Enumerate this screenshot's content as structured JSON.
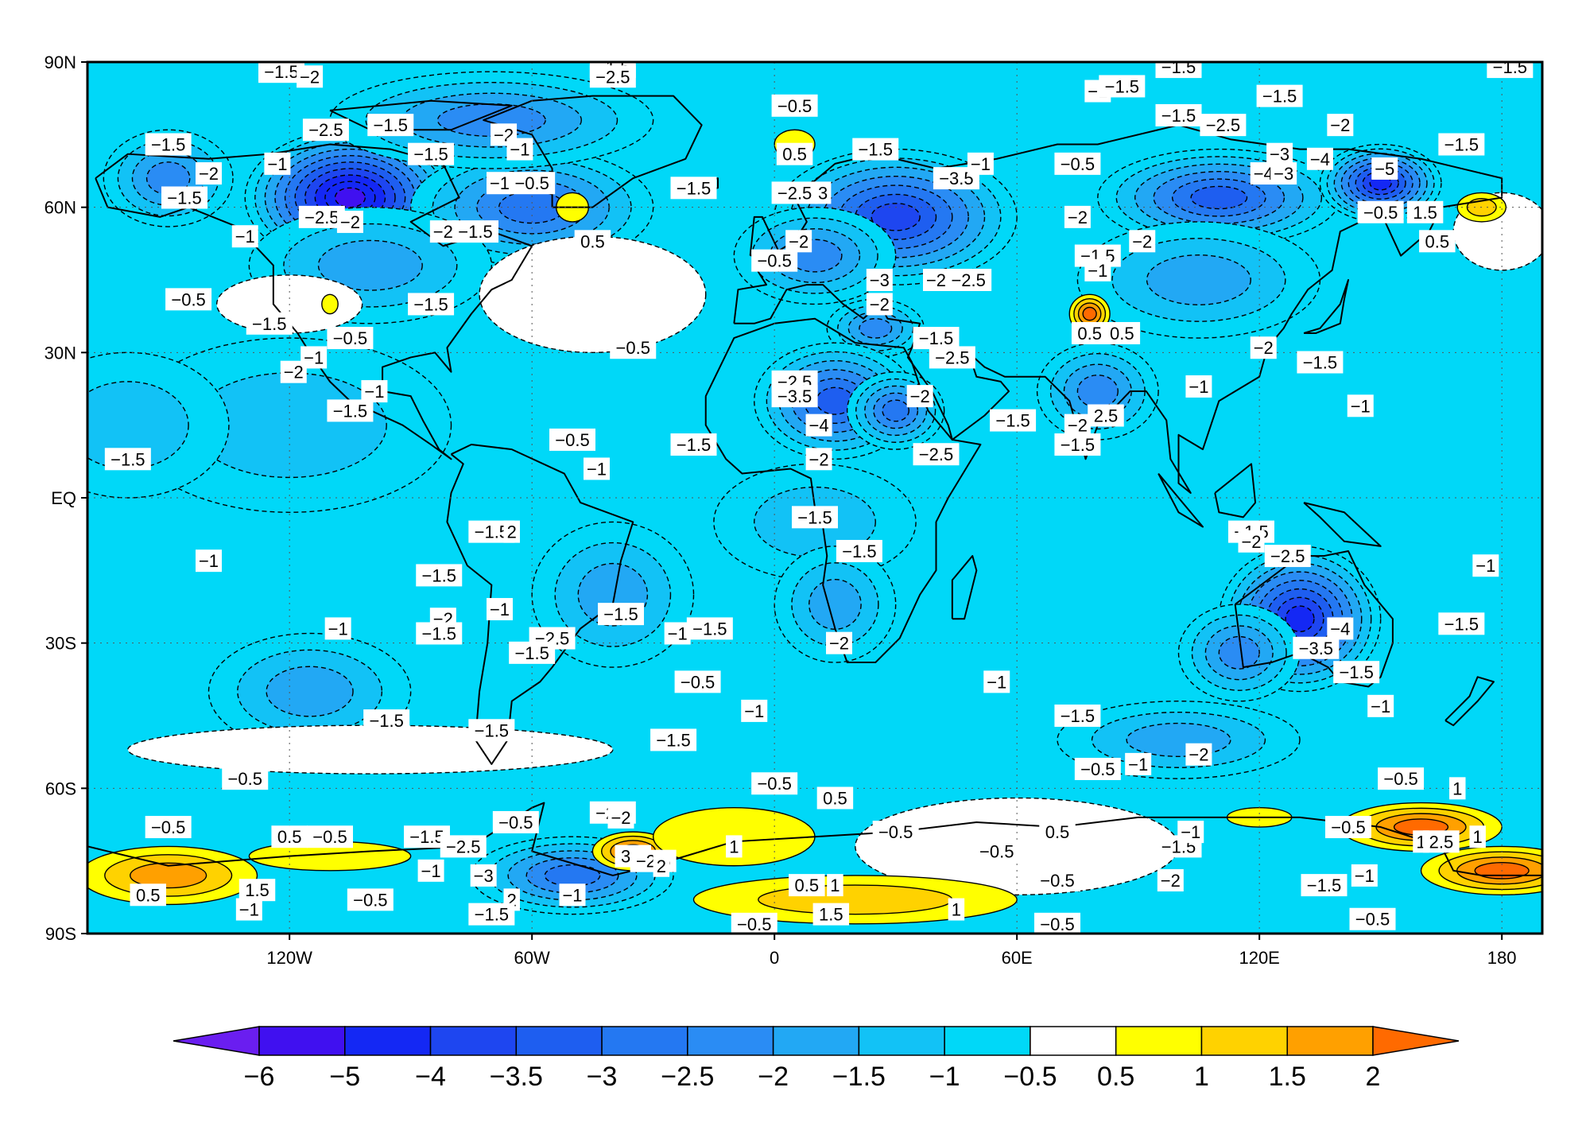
{
  "map": {
    "type": "filled-contour-map",
    "projection": "cylindrical-equidistant",
    "lon_range": [
      -170,
      190
    ],
    "lat_range": [
      -90,
      90
    ],
    "gridlines": "dotted",
    "x_ticks": [
      {
        "lon": -120,
        "label": "120W"
      },
      {
        "lon": -60,
        "label": "60W"
      },
      {
        "lon": 0,
        "label": "0"
      },
      {
        "lon": 60,
        "label": "60E"
      },
      {
        "lon": 120,
        "label": "120E"
      },
      {
        "lon": 180,
        "label": "180"
      }
    ],
    "y_ticks": [
      {
        "lat": 90,
        "label": "90N"
      },
      {
        "lat": 60,
        "label": "60N"
      },
      {
        "lat": 30,
        "label": "30N"
      },
      {
        "lat": 0,
        "label": "EQ"
      },
      {
        "lat": -30,
        "label": "30S"
      },
      {
        "lat": -60,
        "label": "60S"
      },
      {
        "lat": -90,
        "label": "90S"
      }
    ],
    "background_level_color": "#00d8f8",
    "anomalies": [
      {
        "lon": -105,
        "lat": 62,
        "rx": 26,
        "ry": 14,
        "value": -5.5
      },
      {
        "lon": -60,
        "lat": 60,
        "rx": 30,
        "ry": 12,
        "value": -3
      },
      {
        "lon": -150,
        "lat": 66,
        "rx": 16,
        "ry": 10,
        "value": -2.5
      },
      {
        "lon": -100,
        "lat": 48,
        "rx": 30,
        "ry": 12,
        "value": -2
      },
      {
        "lon": -120,
        "lat": 15,
        "rx": 40,
        "ry": 18,
        "value": -1.5
      },
      {
        "lon": -70,
        "lat": 78,
        "rx": 40,
        "ry": 10,
        "value": -2.5
      },
      {
        "lon": 30,
        "lat": 58,
        "rx": 30,
        "ry": 14,
        "value": -4
      },
      {
        "lon": 10,
        "lat": 50,
        "rx": 20,
        "ry": 10,
        "value": -2.5
      },
      {
        "lon": 25,
        "lat": 35,
        "rx": 12,
        "ry": 6,
        "value": -2.5
      },
      {
        "lon": 15,
        "lat": 20,
        "rx": 20,
        "ry": 12,
        "value": -3.5
      },
      {
        "lon": 30,
        "lat": 18,
        "rx": 12,
        "ry": 8,
        "value": -3
      },
      {
        "lon": 10,
        "lat": -5,
        "rx": 25,
        "ry": 12,
        "value": -1.5
      },
      {
        "lon": 15,
        "lat": -22,
        "rx": 15,
        "ry": 12,
        "value": -2
      },
      {
        "lon": 110,
        "lat": 62,
        "rx": 30,
        "ry": 10,
        "value": -3.5
      },
      {
        "lon": 150,
        "lat": 65,
        "rx": 15,
        "ry": 8,
        "value": -4.5
      },
      {
        "lon": 105,
        "lat": 45,
        "rx": 30,
        "ry": 12,
        "value": -2
      },
      {
        "lon": 80,
        "lat": 22,
        "rx": 15,
        "ry": 10,
        "value": -2.5
      },
      {
        "lon": 130,
        "lat": -25,
        "rx": 20,
        "ry": 15,
        "value": -4.5
      },
      {
        "lon": 115,
        "lat": -32,
        "rx": 15,
        "ry": 10,
        "value": -2.5
      },
      {
        "lon": -40,
        "lat": -20,
        "rx": 20,
        "ry": 15,
        "value": -2
      },
      {
        "lon": -115,
        "lat": -40,
        "rx": 25,
        "ry": 12,
        "value": -2
      },
      {
        "lon": 100,
        "lat": -50,
        "rx": 30,
        "ry": 8,
        "value": -2
      },
      {
        "lon": -50,
        "lat": -78,
        "rx": 25,
        "ry": 8,
        "value": -3
      },
      {
        "lon": -160,
        "lat": 15,
        "rx": 25,
        "ry": 15,
        "value": -1.5
      },
      {
        "lon": -45,
        "lat": 42,
        "rx": 28,
        "ry": 12,
        "value": -0.2
      },
      {
        "lon": -120,
        "lat": 40,
        "rx": 18,
        "ry": 6,
        "value": -0.2
      },
      {
        "lon": -100,
        "lat": -52,
        "rx": 60,
        "ry": 5,
        "value": -0.2
      },
      {
        "lon": 60,
        "lat": -72,
        "rx": 40,
        "ry": 10,
        "value": -0.2
      },
      {
        "lon": 180,
        "lat": 55,
        "rx": 12,
        "ry": 8,
        "value": -0.2
      },
      {
        "lon": 5,
        "lat": 73,
        "rx": 5,
        "ry": 3,
        "value": 0.8
      },
      {
        "lon": -50,
        "lat": 60,
        "rx": 4,
        "ry": 3,
        "value": 0.8
      },
      {
        "lon": 78,
        "lat": 38,
        "rx": 5,
        "ry": 4,
        "value": 2
      },
      {
        "lon": -110,
        "lat": 40,
        "rx": 2,
        "ry": 2,
        "value": 0.6
      },
      {
        "lon": -150,
        "lat": -78,
        "rx": 22,
        "ry": 6,
        "value": 1.5
      },
      {
        "lon": -110,
        "lat": -74,
        "rx": 20,
        "ry": 3,
        "value": 0.8
      },
      {
        "lon": -35,
        "lat": -73,
        "rx": 10,
        "ry": 4,
        "value": 2
      },
      {
        "lon": -10,
        "lat": -70,
        "rx": 20,
        "ry": 6,
        "value": 0.8
      },
      {
        "lon": 20,
        "lat": -83,
        "rx": 40,
        "ry": 5,
        "value": 1.2
      },
      {
        "lon": 160,
        "lat": -68,
        "rx": 20,
        "ry": 5,
        "value": 2
      },
      {
        "lon": 180,
        "lat": -77,
        "rx": 20,
        "ry": 5,
        "value": 2
      },
      {
        "lon": 175,
        "lat": 60,
        "rx": 6,
        "ry": 3,
        "value": 1.2
      },
      {
        "lon": 120,
        "lat": -66,
        "rx": 8,
        "ry": 2,
        "value": 0.8
      }
    ],
    "contour_labels": [
      {
        "lon": -150,
        "lat": 73,
        "text": "-1.5"
      },
      {
        "lon": -140,
        "lat": 67,
        "text": "-2"
      },
      {
        "lon": -146,
        "lat": 62,
        "text": "-1.5"
      },
      {
        "lon": -123,
        "lat": 69,
        "text": "-1"
      },
      {
        "lon": -111,
        "lat": 76,
        "text": "-2.5"
      },
      {
        "lon": -112,
        "lat": 58,
        "text": "-2.5"
      },
      {
        "lon": -105,
        "lat": 57,
        "text": "-2"
      },
      {
        "lon": -131,
        "lat": 54,
        "text": "-1"
      },
      {
        "lon": -85,
        "lat": 71,
        "text": "-1.5"
      },
      {
        "lon": -67,
        "lat": 75,
        "text": "-2"
      },
      {
        "lon": -63,
        "lat": 72,
        "text": "-1"
      },
      {
        "lon": -68,
        "lat": 65,
        "text": "-1"
      },
      {
        "lon": -60,
        "lat": 65,
        "text": "-0.5"
      },
      {
        "lon": -82,
        "lat": 55,
        "text": "-2"
      },
      {
        "lon": -74,
        "lat": 55,
        "text": "-1.5"
      },
      {
        "lon": -45,
        "lat": 53,
        "text": "0.5"
      },
      {
        "lon": -145,
        "lat": 41,
        "text": "-0.5"
      },
      {
        "lon": -125,
        "lat": 36,
        "text": "-1.5"
      },
      {
        "lon": -105,
        "lat": 33,
        "text": "-0.5"
      },
      {
        "lon": -114,
        "lat": 29,
        "text": "-1"
      },
      {
        "lon": -119,
        "lat": 26,
        "text": "-2"
      },
      {
        "lon": -85,
        "lat": 40,
        "text": "-1.5"
      },
      {
        "lon": -99,
        "lat": 22,
        "text": "-1"
      },
      {
        "lon": -105,
        "lat": 18,
        "text": "-1.5"
      },
      {
        "lon": -160,
        "lat": 8,
        "text": "-1.5"
      },
      {
        "lon": -35,
        "lat": 31,
        "text": "-0.5"
      },
      {
        "lon": -50,
        "lat": 12,
        "text": "-0.5"
      },
      {
        "lon": -44,
        "lat": 6,
        "text": "-1"
      },
      {
        "lon": -20,
        "lat": 11,
        "text": "-1.5"
      },
      {
        "lon": 5,
        "lat": 81,
        "text": "-0.5"
      },
      {
        "lon": 5,
        "lat": 71,
        "text": "0.5"
      },
      {
        "lon": 25,
        "lat": 72,
        "text": "-1.5"
      },
      {
        "lon": -20,
        "lat": 64,
        "text": "-1.5"
      },
      {
        "lon": 5,
        "lat": 63,
        "text": "-2.5"
      },
      {
        "lon": 12,
        "lat": 63,
        "text": "3"
      },
      {
        "lon": 45,
        "lat": 66,
        "text": "-3.5"
      },
      {
        "lon": 51,
        "lat": 69,
        "text": "-1"
      },
      {
        "lon": 6,
        "lat": 53,
        "text": "-2"
      },
      {
        "lon": 0,
        "lat": 49,
        "text": "-0.5"
      },
      {
        "lon": 26,
        "lat": 45,
        "text": "-3"
      },
      {
        "lon": 26,
        "lat": 40,
        "text": "-2"
      },
      {
        "lon": 40,
        "lat": 45,
        "text": "-2"
      },
      {
        "lon": 48,
        "lat": 45,
        "text": "-2.5"
      },
      {
        "lon": 40,
        "lat": 33,
        "text": "-1.5"
      },
      {
        "lon": 44,
        "lat": 29,
        "text": "-2.5"
      },
      {
        "lon": 5,
        "lat": 24,
        "text": "-2.5"
      },
      {
        "lon": 5,
        "lat": 21,
        "text": "-3.5"
      },
      {
        "lon": 36,
        "lat": 21,
        "text": "-2"
      },
      {
        "lon": 11,
        "lat": 15,
        "text": "-4"
      },
      {
        "lon": 59,
        "lat": 16,
        "text": "-1.5"
      },
      {
        "lon": 40,
        "lat": 9,
        "text": "-2.5"
      },
      {
        "lon": 11,
        "lat": 8,
        "text": "-2"
      },
      {
        "lon": 10,
        "lat": -4,
        "text": "-1.5"
      },
      {
        "lon": 21,
        "lat": -11,
        "text": "-1.5"
      },
      {
        "lon": 16,
        "lat": -30,
        "text": "-2"
      },
      {
        "lon": -38,
        "lat": -24,
        "text": "-1.5"
      },
      {
        "lon": -16,
        "lat": -27,
        "text": "-1.5"
      },
      {
        "lon": -24,
        "lat": -28,
        "text": "-1"
      },
      {
        "lon": -140,
        "lat": -13,
        "text": "-1"
      },
      {
        "lon": -108,
        "lat": -27,
        "text": "-1"
      },
      {
        "lon": -83,
        "lat": -16,
        "text": "-1.5"
      },
      {
        "lon": -82,
        "lat": -25,
        "text": "-2"
      },
      {
        "lon": -83,
        "lat": -28,
        "text": "-1.5"
      },
      {
        "lon": -68,
        "lat": -23,
        "text": "-1"
      },
      {
        "lon": -70,
        "lat": -7,
        "text": "-1.5"
      },
      {
        "lon": -65,
        "lat": -7,
        "text": "2"
      },
      {
        "lon": -55,
        "lat": -29,
        "text": "-2.5"
      },
      {
        "lon": -60,
        "lat": -32,
        "text": "-1.5"
      },
      {
        "lon": -96,
        "lat": -46,
        "text": "-1.5"
      },
      {
        "lon": -70,
        "lat": -48,
        "text": "-1.5"
      },
      {
        "lon": -19,
        "lat": -38,
        "text": "-0.5"
      },
      {
        "lon": -25,
        "lat": -50,
        "text": "-1.5"
      },
      {
        "lon": -5,
        "lat": -44,
        "text": "-1"
      },
      {
        "lon": 55,
        "lat": -38,
        "text": "-1"
      },
      {
        "lon": 75,
        "lat": -45,
        "text": "-1.5"
      },
      {
        "lon": 80,
        "lat": -56,
        "text": "-0.5"
      },
      {
        "lon": 90,
        "lat": -55,
        "text": "-1"
      },
      {
        "lon": 105,
        "lat": -53,
        "text": "-2"
      },
      {
        "lon": -95,
        "lat": 77,
        "text": "-1.5"
      },
      {
        "lon": 80,
        "lat": 84,
        "text": "-1"
      },
      {
        "lon": 86,
        "lat": 85,
        "text": "-1.5"
      },
      {
        "lon": 100,
        "lat": 79,
        "text": "-1.5"
      },
      {
        "lon": 111,
        "lat": 77,
        "text": "-2.5"
      },
      {
        "lon": 125,
        "lat": 83,
        "text": "-1.5"
      },
      {
        "lon": 140,
        "lat": 77,
        "text": "-2"
      },
      {
        "lon": 170,
        "lat": 73,
        "text": "-1.5"
      },
      {
        "lon": 75,
        "lat": 69,
        "text": "-0.5"
      },
      {
        "lon": 125,
        "lat": 71,
        "text": "-3"
      },
      {
        "lon": 135,
        "lat": 70,
        "text": "-4"
      },
      {
        "lon": 121,
        "lat": 67,
        "text": "-4"
      },
      {
        "lon": 126,
        "lat": 67,
        "text": "-3"
      },
      {
        "lon": 151,
        "lat": 68,
        "text": "-5"
      },
      {
        "lon": 75,
        "lat": 58,
        "text": "-2"
      },
      {
        "lon": 91,
        "lat": 53,
        "text": "-2"
      },
      {
        "lon": 80,
        "lat": 50,
        "text": "-1.5"
      },
      {
        "lon": 80,
        "lat": 47,
        "text": "-1"
      },
      {
        "lon": 150,
        "lat": 59,
        "text": "-0.5"
      },
      {
        "lon": 161,
        "lat": 59,
        "text": "1.5"
      },
      {
        "lon": 164,
        "lat": 53,
        "text": "0.5"
      },
      {
        "lon": 78,
        "lat": 34,
        "text": "0.5"
      },
      {
        "lon": 86,
        "lat": 34,
        "text": "0.5"
      },
      {
        "lon": 121,
        "lat": 31,
        "text": "-2"
      },
      {
        "lon": 135,
        "lat": 28,
        "text": "-1.5"
      },
      {
        "lon": 105,
        "lat": 23,
        "text": "-1"
      },
      {
        "lon": 145,
        "lat": 19,
        "text": "-1"
      },
      {
        "lon": 75,
        "lat": 15,
        "text": "-2"
      },
      {
        "lon": 82,
        "lat": 17,
        "text": "2.5"
      },
      {
        "lon": 75,
        "lat": 11,
        "text": "-1.5"
      },
      {
        "lon": 118,
        "lat": -7,
        "text": "-1.5"
      },
      {
        "lon": 118,
        "lat": -9,
        "text": "-2"
      },
      {
        "lon": 127,
        "lat": -12,
        "text": "-2.5"
      },
      {
        "lon": 176,
        "lat": -14,
        "text": "-1"
      },
      {
        "lon": 140,
        "lat": -27,
        "text": "-4"
      },
      {
        "lon": 134,
        "lat": -31,
        "text": "-3.5"
      },
      {
        "lon": 144,
        "lat": -36,
        "text": "-1.5"
      },
      {
        "lon": 150,
        "lat": -43,
        "text": "-1"
      },
      {
        "lon": 170,
        "lat": -26,
        "text": "-1.5"
      },
      {
        "lon": -131,
        "lat": -58,
        "text": "-0.5"
      },
      {
        "lon": -150,
        "lat": -68,
        "text": "-0.5"
      },
      {
        "lon": -120,
        "lat": -70,
        "text": "0.5"
      },
      {
        "lon": -110,
        "lat": -70,
        "text": "-0.5"
      },
      {
        "lon": -155,
        "lat": -82,
        "text": "0.5"
      },
      {
        "lon": -128,
        "lat": -81,
        "text": "1.5"
      },
      {
        "lon": -130,
        "lat": -85,
        "text": "-1"
      },
      {
        "lon": -100,
        "lat": -83,
        "text": "-0.5"
      },
      {
        "lon": -85,
        "lat": -77,
        "text": "-1"
      },
      {
        "lon": -86,
        "lat": -70,
        "text": "-1.5"
      },
      {
        "lon": -77,
        "lat": -72,
        "text": "-2.5"
      },
      {
        "lon": -64,
        "lat": -67,
        "text": "-0.5"
      },
      {
        "lon": -72,
        "lat": -78,
        "text": "-3"
      },
      {
        "lon": -65,
        "lat": -83,
        "text": "2"
      },
      {
        "lon": -70,
        "lat": -86,
        "text": "-1.5"
      },
      {
        "lon": -50,
        "lat": -82,
        "text": "-1"
      },
      {
        "lon": -40,
        "lat": -65,
        "text": "-2.5"
      },
      {
        "lon": -38,
        "lat": -66,
        "text": "-2"
      },
      {
        "lon": -35,
        "lat": -74,
        "text": "3.5"
      },
      {
        "lon": -30,
        "lat": -75,
        "text": "-2.5"
      },
      {
        "lon": -28,
        "lat": -76,
        "text": "2"
      },
      {
        "lon": -10,
        "lat": -72,
        "text": "1"
      },
      {
        "lon": 0,
        "lat": -59,
        "text": "-0.5"
      },
      {
        "lon": 15,
        "lat": -62,
        "text": "0.5"
      },
      {
        "lon": 30,
        "lat": -69,
        "text": "-0.5"
      },
      {
        "lon": 8,
        "lat": -80,
        "text": "0.5"
      },
      {
        "lon": 15,
        "lat": -80,
        "text": "1"
      },
      {
        "lon": 14,
        "lat": -86,
        "text": "1.5"
      },
      {
        "lon": -5,
        "lat": -88,
        "text": "-0.5"
      },
      {
        "lon": 45,
        "lat": -85,
        "text": "1"
      },
      {
        "lon": 55,
        "lat": -73,
        "text": "-0.5"
      },
      {
        "lon": 70,
        "lat": -69,
        "text": "0.5"
      },
      {
        "lon": 70,
        "lat": -79,
        "text": "-0.5"
      },
      {
        "lon": 70,
        "lat": -88,
        "text": "-0.5"
      },
      {
        "lon": 100,
        "lat": -72,
        "text": "-1.5"
      },
      {
        "lon": 103,
        "lat": -69,
        "text": "-1"
      },
      {
        "lon": 98,
        "lat": -79,
        "text": "-2"
      },
      {
        "lon": 136,
        "lat": -80,
        "text": "-1.5"
      },
      {
        "lon": 146,
        "lat": -78,
        "text": "-1"
      },
      {
        "lon": 142,
        "lat": -68,
        "text": "-0.5"
      },
      {
        "lon": 155,
        "lat": -58,
        "text": "-0.5"
      },
      {
        "lon": 169,
        "lat": -60,
        "text": "1"
      },
      {
        "lon": 160,
        "lat": -71,
        "text": "1"
      },
      {
        "lon": 165,
        "lat": -71,
        "text": "2.5"
      },
      {
        "lon": 174,
        "lat": -70,
        "text": "1"
      },
      {
        "lon": 148,
        "lat": -87,
        "text": "-0.5"
      },
      {
        "lon": -122,
        "lat": 88,
        "text": "-1.5"
      },
      {
        "lon": -115,
        "lat": 87,
        "text": "-2"
      },
      {
        "lon": -40,
        "lat": 89,
        "text": "-1.5"
      },
      {
        "lon": -40,
        "lat": 87,
        "text": "-2.5"
      },
      {
        "lon": 100,
        "lat": 89,
        "text": "-1.5"
      },
      {
        "lon": 182,
        "lat": 89,
        "text": "-1.5"
      }
    ],
    "coastline_color": "#000000",
    "colorbar": {
      "levels": [
        "-6",
        "-5",
        "-4",
        "-3.5",
        "-3",
        "-2.5",
        "-2",
        "-1.5",
        "-1",
        "-0.5",
        "0.5",
        "1",
        "1.5",
        "2"
      ],
      "colors": [
        "#6a1ef0",
        "#4010f0",
        "#1428f4",
        "#1e46f0",
        "#1e5ef0",
        "#2478f2",
        "#2a8cf4",
        "#22a8f4",
        "#12c2f6",
        "#00d8f8",
        "#ffffff",
        "#ffff00",
        "#ffd200",
        "#ffa000",
        "#ff6a00"
      ]
    }
  }
}
